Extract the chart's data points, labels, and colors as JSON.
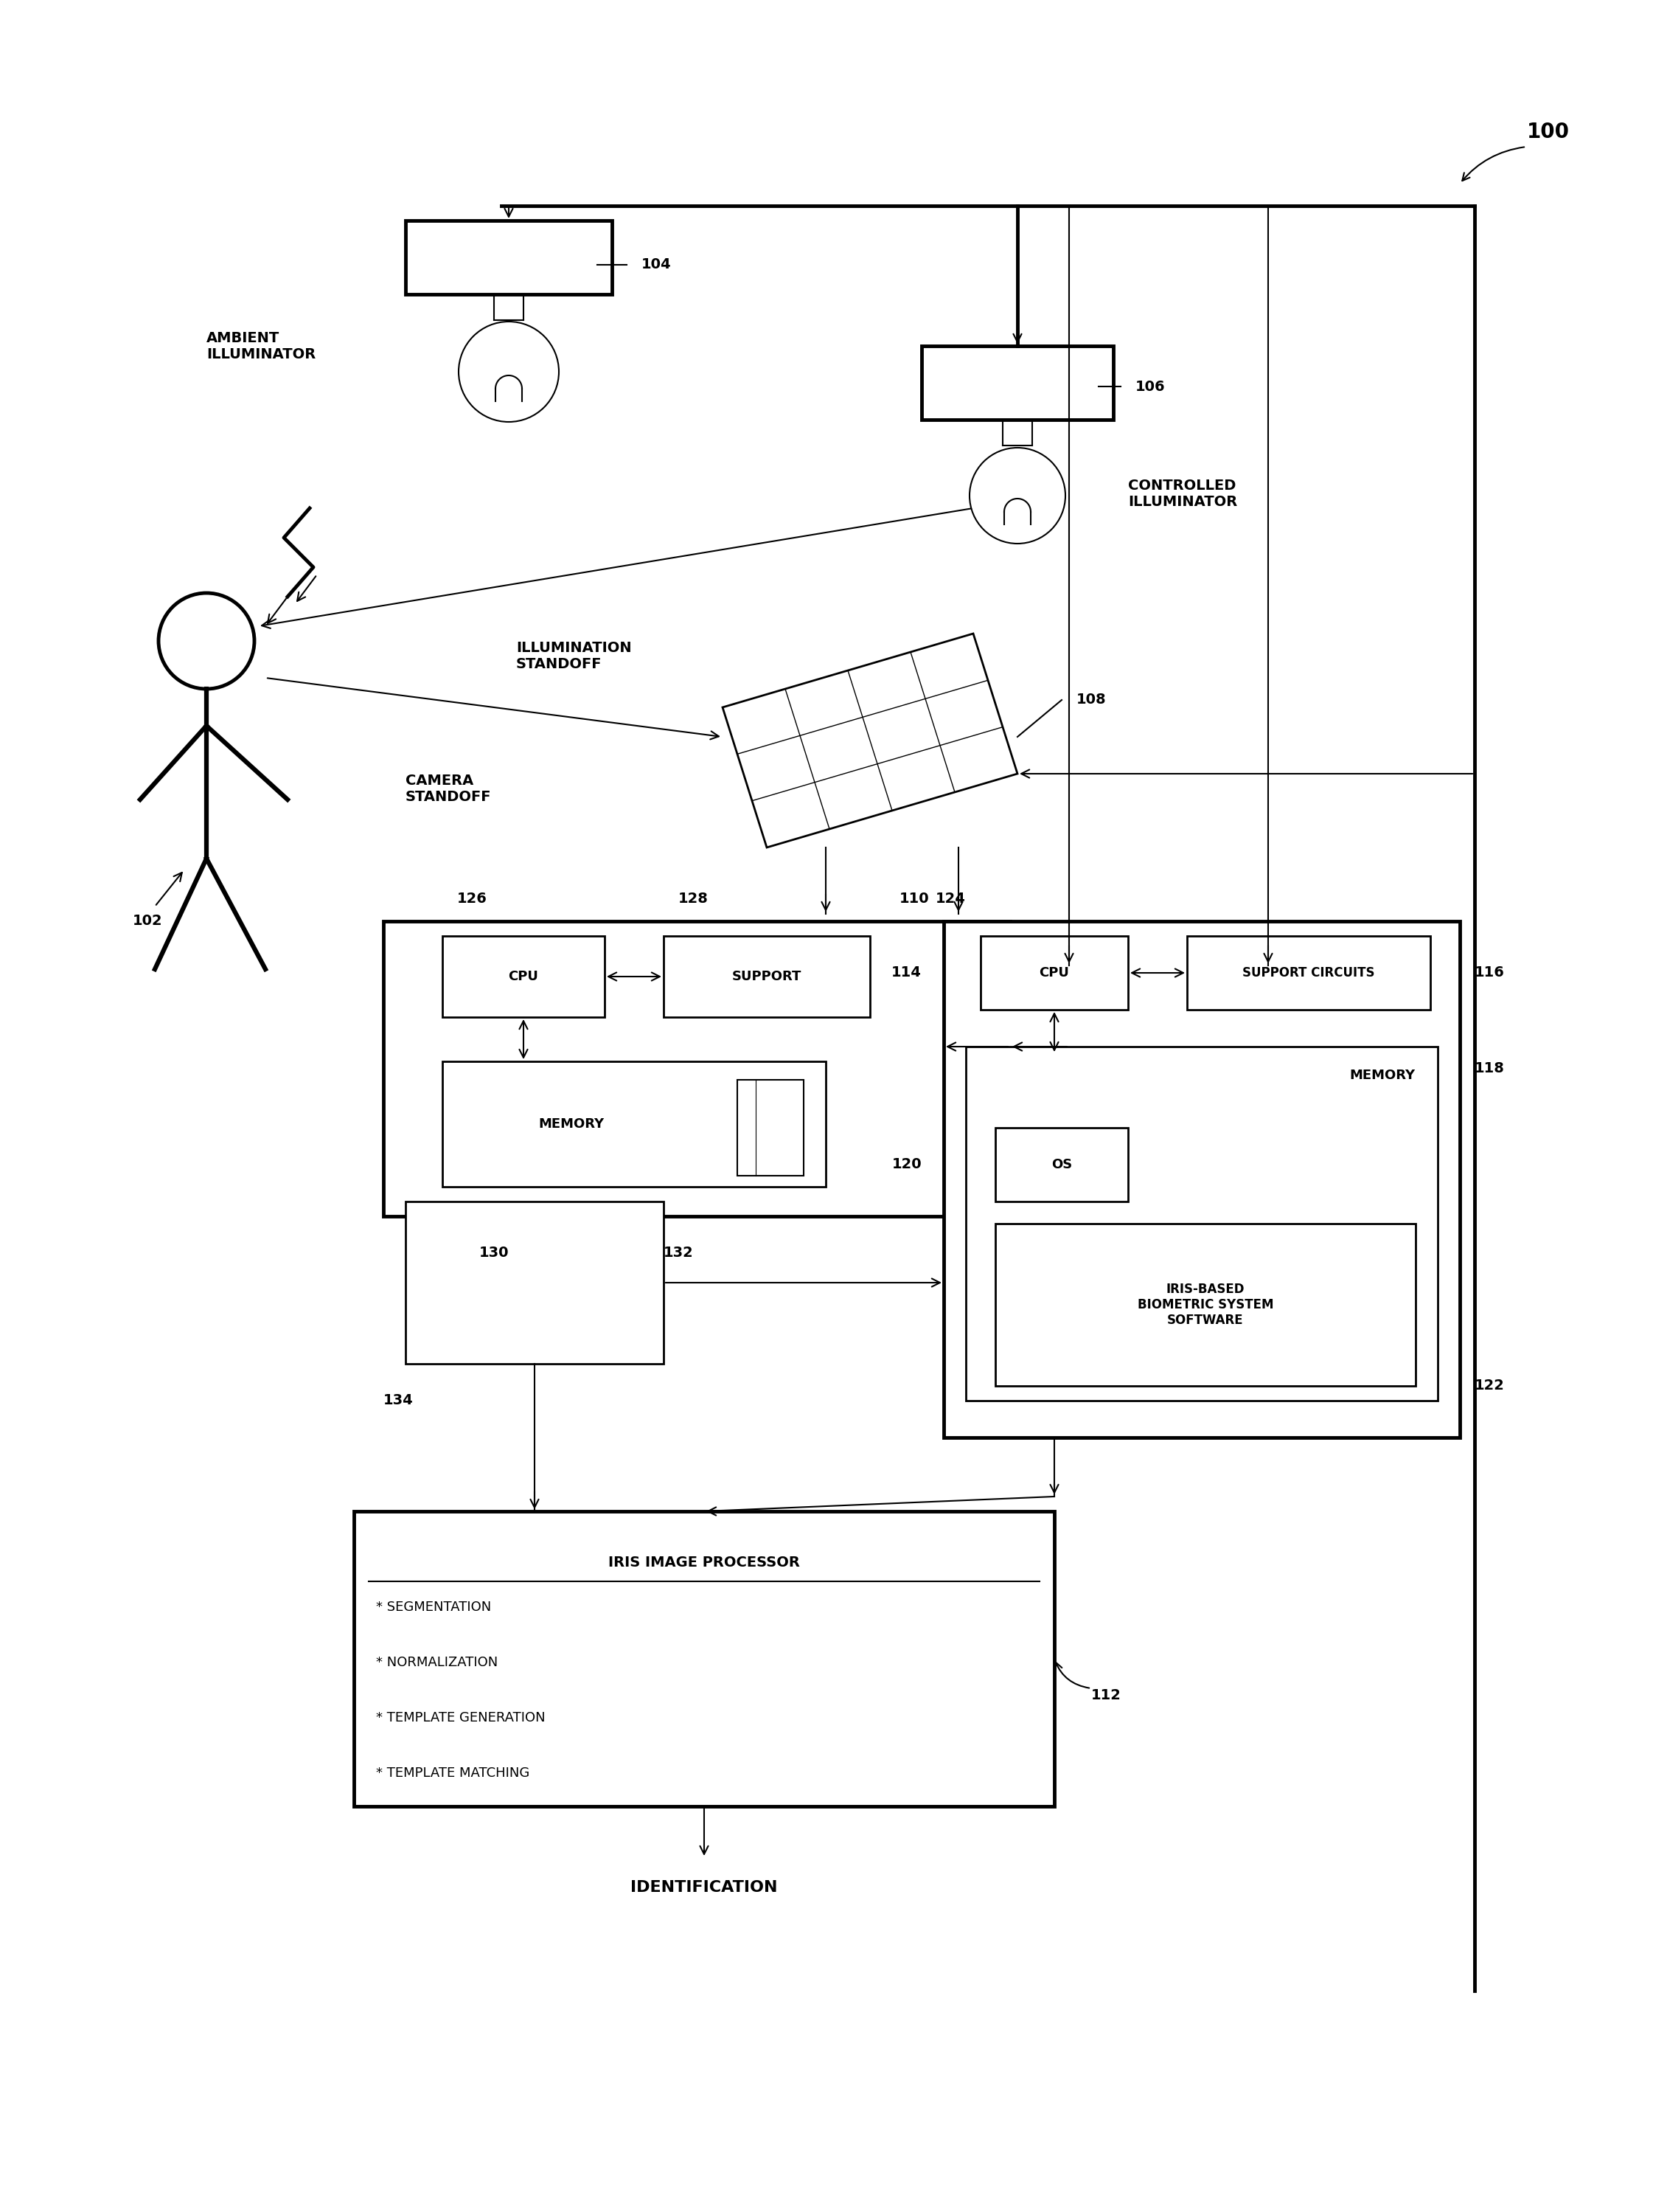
{
  "bg_color": "#ffffff",
  "fig_num": "100",
  "ref_104": "104",
  "ref_106": "106",
  "ref_108": "108",
  "ref_110": "110",
  "ref_112": "112",
  "ref_114": "114",
  "ref_116": "116",
  "ref_118": "118",
  "ref_120": "120",
  "ref_122": "122",
  "ref_124": "124",
  "ref_126": "126",
  "ref_128": "128",
  "ref_130": "130",
  "ref_132": "132",
  "ref_134": "134",
  "ref_102": "102",
  "label_ambient": "AMBIENT\nILLUMINATOR",
  "label_controlled": "CONTROLLED\nILLUMINATOR",
  "label_illum_standoff": "ILLUMINATION\nSTANDOFF",
  "label_cam_standoff": "CAMERA\nSTANDOFF",
  "label_cpu": "CPU",
  "label_support": "SUPPORT",
  "label_memory": "MEMORY",
  "label_support_circuits": "SUPPORT CIRCUITS",
  "label_os": "OS",
  "label_iris_sw": "IRIS-BASED\nBIOMETRIC SYSTEM\nSOFTWARE",
  "label_iris_proc": "IRIS IMAGE PROCESSOR",
  "iris_items": [
    "* SEGMENTATION",
    "* NORMALIZATION",
    "* TEMPLATE GENERATION",
    "* TEMPLATE MATCHING"
  ],
  "label_identification": "IDENTIFICATION"
}
